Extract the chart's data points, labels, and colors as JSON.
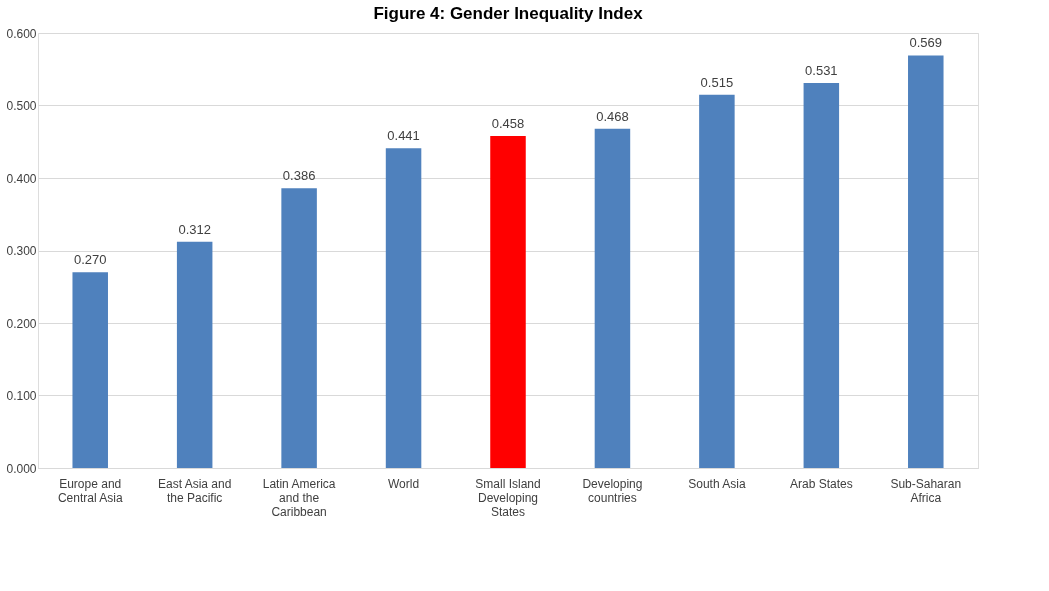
{
  "chart_data": {
    "type": "bar",
    "title": "Figure 4: Gender Inequality Index",
    "categories": [
      "Europe and Central Asia",
      "East Asia and the Pacific",
      "Latin America and the Caribbean",
      "World",
      "Small Island Developing States",
      "Developing countries",
      "South Asia",
      "Arab States",
      "Sub-Saharan Africa"
    ],
    "values": [
      0.27,
      0.312,
      0.386,
      0.441,
      0.458,
      0.468,
      0.515,
      0.531,
      0.569
    ],
    "colors": [
      "#4f81bd",
      "#4f81bd",
      "#4f81bd",
      "#4f81bd",
      "#ff0000",
      "#4f81bd",
      "#4f81bd",
      "#4f81bd",
      "#4f81bd"
    ],
    "ylim": [
      0,
      0.6
    ],
    "yticks": [
      {
        "value": 0,
        "label": "0.000"
      },
      {
        "value": 0.1,
        "label": "0.100"
      },
      {
        "value": 0.2,
        "label": "0.200"
      },
      {
        "value": 0.3,
        "label": "0.300"
      },
      {
        "value": 0.4,
        "label": "0.400"
      },
      {
        "value": 0.5,
        "label": "0.500"
      },
      {
        "value": 0.6,
        "label": "0.600"
      }
    ],
    "value_labels": [
      "0.270",
      "0.312",
      "0.386",
      "0.441",
      "0.458",
      "0.468",
      "0.515",
      "0.531",
      "0.569"
    ],
    "grid": "y"
  }
}
